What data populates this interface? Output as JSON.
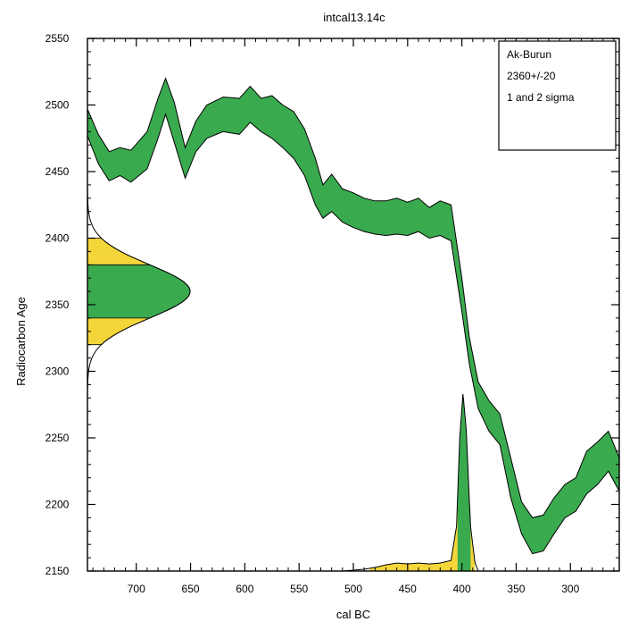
{
  "chart_data": {
    "type": "area",
    "title": "intcal13.14c",
    "xlabel": "cal BC",
    "ylabel": "Radiocarbon Age",
    "x_reversed": true,
    "xlim": [
      745,
      255
    ],
    "ylim": [
      2150,
      2550
    ],
    "x_ticks": [
      700,
      650,
      600,
      550,
      500,
      450,
      400,
      350,
      300
    ],
    "y_ticks": [
      2150,
      2200,
      2250,
      2300,
      2350,
      2400,
      2450,
      2500,
      2550
    ],
    "legend": {
      "placement": "top-right",
      "lines": [
        "Ak-Burun",
        "2360+/-20",
        "1 and 2 sigma"
      ]
    },
    "colors": {
      "calibration_band": "#3aaa4f",
      "sigma1": "#3aaa4f",
      "sigma2": "#f5d63a",
      "outline": "#000000"
    },
    "calibration_curve": {
      "x": [
        745,
        735,
        725,
        715,
        705,
        690,
        680,
        673,
        665,
        655,
        645,
        635,
        620,
        605,
        595,
        585,
        575,
        565,
        555,
        545,
        535,
        528,
        520,
        510,
        500,
        490,
        480,
        470,
        460,
        450,
        440,
        430,
        420,
        410,
        400,
        393,
        385,
        375,
        365,
        355,
        345,
        335,
        325,
        315,
        305,
        295,
        285,
        275,
        265,
        255
      ],
      "upper": [
        2497,
        2478,
        2465,
        2468,
        2466,
        2480,
        2505,
        2520,
        2502,
        2468,
        2488,
        2500,
        2506,
        2505,
        2514,
        2505,
        2507,
        2500,
        2495,
        2482,
        2460,
        2440,
        2448,
        2437,
        2434,
        2430,
        2428,
        2428,
        2430,
        2427,
        2430,
        2423,
        2428,
        2425,
        2370,
        2325,
        2292,
        2278,
        2268,
        2235,
        2202,
        2190,
        2192,
        2205,
        2215,
        2220,
        2240,
        2247,
        2255,
        2235
      ],
      "lower": [
        2477,
        2456,
        2443,
        2447,
        2442,
        2452,
        2475,
        2493,
        2472,
        2445,
        2465,
        2475,
        2480,
        2478,
        2487,
        2480,
        2475,
        2468,
        2460,
        2447,
        2425,
        2415,
        2420,
        2412,
        2408,
        2405,
        2403,
        2402,
        2403,
        2402,
        2405,
        2400,
        2402,
        2398,
        2345,
        2305,
        2272,
        2255,
        2245,
        2205,
        2178,
        2163,
        2165,
        2178,
        2190,
        2195,
        2208,
        2215,
        2225,
        2210
      ]
    },
    "radiocarbon_distribution": {
      "mean": 2360,
      "sd": 20,
      "sigma1_range": [
        2340,
        2380
      ],
      "sigma2_range": [
        2320,
        2400
      ]
    },
    "calibrated_distribution": {
      "x": [
        510,
        500,
        490,
        480,
        470,
        460,
        450,
        440,
        430,
        420,
        410,
        405,
        402,
        399,
        396,
        392,
        388,
        385
      ],
      "probability": [
        0.0,
        0.005,
        0.01,
        0.02,
        0.035,
        0.045,
        0.04,
        0.045,
        0.04,
        0.045,
        0.06,
        0.25,
        0.75,
        1.0,
        0.8,
        0.25,
        0.05,
        0.0
      ],
      "sigma1_range": [
        404,
        392
      ],
      "sigma2_range": [
        485,
        388
      ]
    }
  }
}
